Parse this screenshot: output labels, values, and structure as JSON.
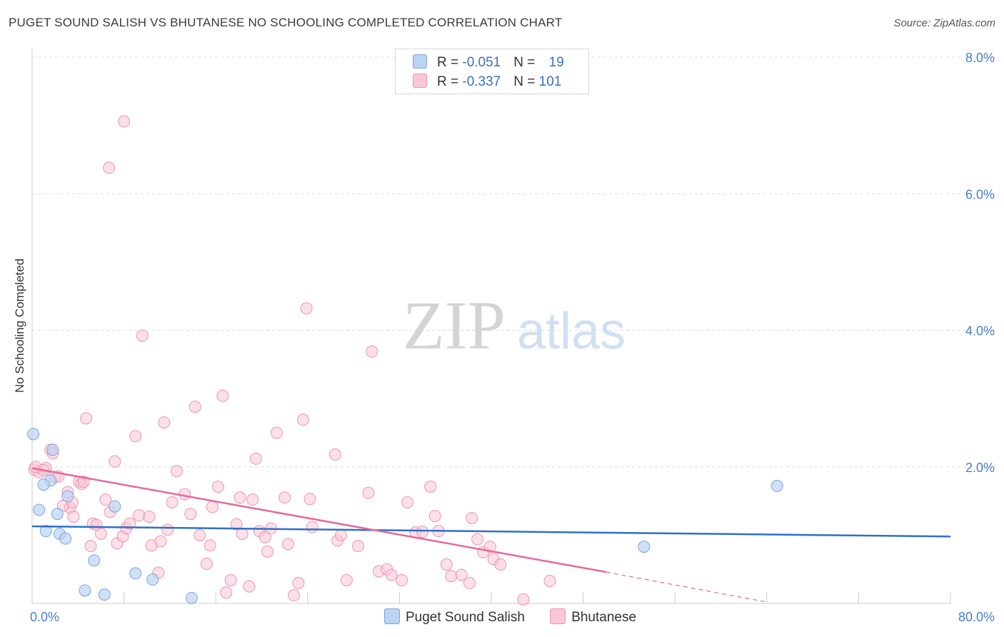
{
  "header": {
    "title": "PUGET SOUND SALISH VS BHUTANESE NO SCHOOLING COMPLETED CORRELATION CHART",
    "source": "Source: ZipAtlas.com"
  },
  "legend": {
    "rows": [
      {
        "r_label": "R = ",
        "r_value": "-0.051",
        "n_label": "N = ",
        "n_value": "19"
      },
      {
        "r_label": "R = ",
        "r_value": "-0.337",
        "n_label": "N = ",
        "n_value": "101"
      }
    ]
  },
  "bottom_legend": {
    "items": [
      {
        "label": "Puget Sound Salish"
      },
      {
        "label": "Bhutanese"
      }
    ]
  },
  "watermark": {
    "zip": "ZIP",
    "atlas": "atlas"
  },
  "colors": {
    "blue_fill": "#bcd3f2",
    "blue_stroke": "#7ba5dc",
    "blue_line": "#2e6fcc",
    "pink_fill": "#f9c6d6",
    "pink_stroke": "#ee93b2",
    "pink_line": "#e8689a",
    "tick_label": "#4a7ec8"
  },
  "chart_data": {
    "type": "scatter",
    "title": "PUGET SOUND SALISH VS BHUTANESE NO SCHOOLING COMPLETED CORRELATION CHART",
    "xlabel": "",
    "ylabel": "No Schooling Completed",
    "xlim": [
      0,
      80
    ],
    "ylim": [
      0,
      8.0
    ],
    "x_tick_labels": [
      "0.0%",
      "80.0%"
    ],
    "y_ticks": [
      2.0,
      4.0,
      6.0,
      8.0
    ],
    "y_tick_labels": [
      "2.0%",
      "4.0%",
      "6.0%",
      "8.0%"
    ],
    "grid": true,
    "series": [
      {
        "name": "Puget Sound Salish",
        "r": -0.051,
        "n": 19,
        "trend": {
          "x0": 0,
          "y0": 1.13,
          "x1": 80,
          "y1": 0.98
        },
        "points": [
          [
            0.1,
            2.48
          ],
          [
            1.8,
            2.25
          ],
          [
            1.6,
            1.8
          ],
          [
            1.0,
            1.74
          ],
          [
            3.1,
            1.57
          ],
          [
            7.2,
            1.42
          ],
          [
            0.6,
            1.37
          ],
          [
            2.2,
            1.31
          ],
          [
            1.2,
            1.06
          ],
          [
            2.4,
            1.02
          ],
          [
            2.9,
            0.95
          ],
          [
            5.4,
            0.63
          ],
          [
            9.0,
            0.44
          ],
          [
            10.5,
            0.35
          ],
          [
            4.6,
            0.19
          ],
          [
            6.3,
            0.13
          ],
          [
            13.9,
            0.08
          ],
          [
            64.9,
            1.72
          ],
          [
            53.3,
            0.83
          ]
        ]
      },
      {
        "name": "Bhutanese",
        "r": -0.337,
        "n": 101,
        "trend": {
          "x0": 0,
          "y0": 1.98,
          "x1": 50,
          "y1": 0.46,
          "dash_x1": 64,
          "dash_y1": 0.02
        },
        "points": [
          [
            0.2,
            1.96
          ],
          [
            0.6,
            1.92
          ],
          [
            1.2,
            1.98
          ],
          [
            1.6,
            2.25
          ],
          [
            1.8,
            2.2
          ],
          [
            2.0,
            1.85
          ],
          [
            2.3,
            1.86
          ],
          [
            3.1,
            1.63
          ],
          [
            3.3,
            1.4
          ],
          [
            3.6,
            1.27
          ],
          [
            4.1,
            1.78
          ],
          [
            4.3,
            1.75
          ],
          [
            2.7,
            1.43
          ],
          [
            4.7,
            2.71
          ],
          [
            5.1,
            0.84
          ],
          [
            5.3,
            1.17
          ],
          [
            5.6,
            1.15
          ],
          [
            6.0,
            1.02
          ],
          [
            6.4,
            1.52
          ],
          [
            6.8,
            1.34
          ],
          [
            7.2,
            2.08
          ],
          [
            7.4,
            0.88
          ],
          [
            7.9,
            0.98
          ],
          [
            8.2,
            1.1
          ],
          [
            8.5,
            1.17
          ],
          [
            9.0,
            2.45
          ],
          [
            9.3,
            1.29
          ],
          [
            10.2,
            1.27
          ],
          [
            10.4,
            0.85
          ],
          [
            11.0,
            0.45
          ],
          [
            11.2,
            0.91
          ],
          [
            11.5,
            2.65
          ],
          [
            11.8,
            1.08
          ],
          [
            12.2,
            1.48
          ],
          [
            12.6,
            1.94
          ],
          [
            13.3,
            1.6
          ],
          [
            13.8,
            1.31
          ],
          [
            14.2,
            2.88
          ],
          [
            14.6,
            1.0
          ],
          [
            15.2,
            0.58
          ],
          [
            15.5,
            0.85
          ],
          [
            15.7,
            1.41
          ],
          [
            16.2,
            1.71
          ],
          [
            16.6,
            3.04
          ],
          [
            16.9,
            0.16
          ],
          [
            17.3,
            0.34
          ],
          [
            17.8,
            1.16
          ],
          [
            18.1,
            1.55
          ],
          [
            18.3,
            1.02
          ],
          [
            18.9,
            0.25
          ],
          [
            19.2,
            1.52
          ],
          [
            19.5,
            2.12
          ],
          [
            19.8,
            1.06
          ],
          [
            20.3,
            0.97
          ],
          [
            20.5,
            0.76
          ],
          [
            20.8,
            1.1
          ],
          [
            21.3,
            2.5
          ],
          [
            22.0,
            1.55
          ],
          [
            22.3,
            0.87
          ],
          [
            22.8,
            0.12
          ],
          [
            23.2,
            0.3
          ],
          [
            23.6,
            2.69
          ],
          [
            23.9,
            4.32
          ],
          [
            24.2,
            1.53
          ],
          [
            24.4,
            1.12
          ],
          [
            26.4,
            2.18
          ],
          [
            26.6,
            0.92
          ],
          [
            26.9,
            1.0
          ],
          [
            27.4,
            0.34
          ],
          [
            28.4,
            0.84
          ],
          [
            29.3,
            1.62
          ],
          [
            29.6,
            3.69
          ],
          [
            30.2,
            0.47
          ],
          [
            30.9,
            0.5
          ],
          [
            31.3,
            0.42
          ],
          [
            32.2,
            0.34
          ],
          [
            32.7,
            1.48
          ],
          [
            33.4,
            1.04
          ],
          [
            34.0,
            1.05
          ],
          [
            34.7,
            1.71
          ],
          [
            35.1,
            1.28
          ],
          [
            35.4,
            1.06
          ],
          [
            36.1,
            0.57
          ],
          [
            36.5,
            0.4
          ],
          [
            37.4,
            0.42
          ],
          [
            38.1,
            0.3
          ],
          [
            38.3,
            1.25
          ],
          [
            38.8,
            0.94
          ],
          [
            39.3,
            0.75
          ],
          [
            39.9,
            0.83
          ],
          [
            40.2,
            0.65
          ],
          [
            40.8,
            0.57
          ],
          [
            42.8,
            0.06
          ],
          [
            45.1,
            0.33
          ],
          [
            8.0,
            7.06
          ],
          [
            6.7,
            6.38
          ],
          [
            9.6,
            3.92
          ],
          [
            0.3,
            2.0
          ],
          [
            1.0,
            1.95
          ],
          [
            4.5,
            1.78
          ],
          [
            3.5,
            1.48
          ]
        ]
      }
    ]
  }
}
